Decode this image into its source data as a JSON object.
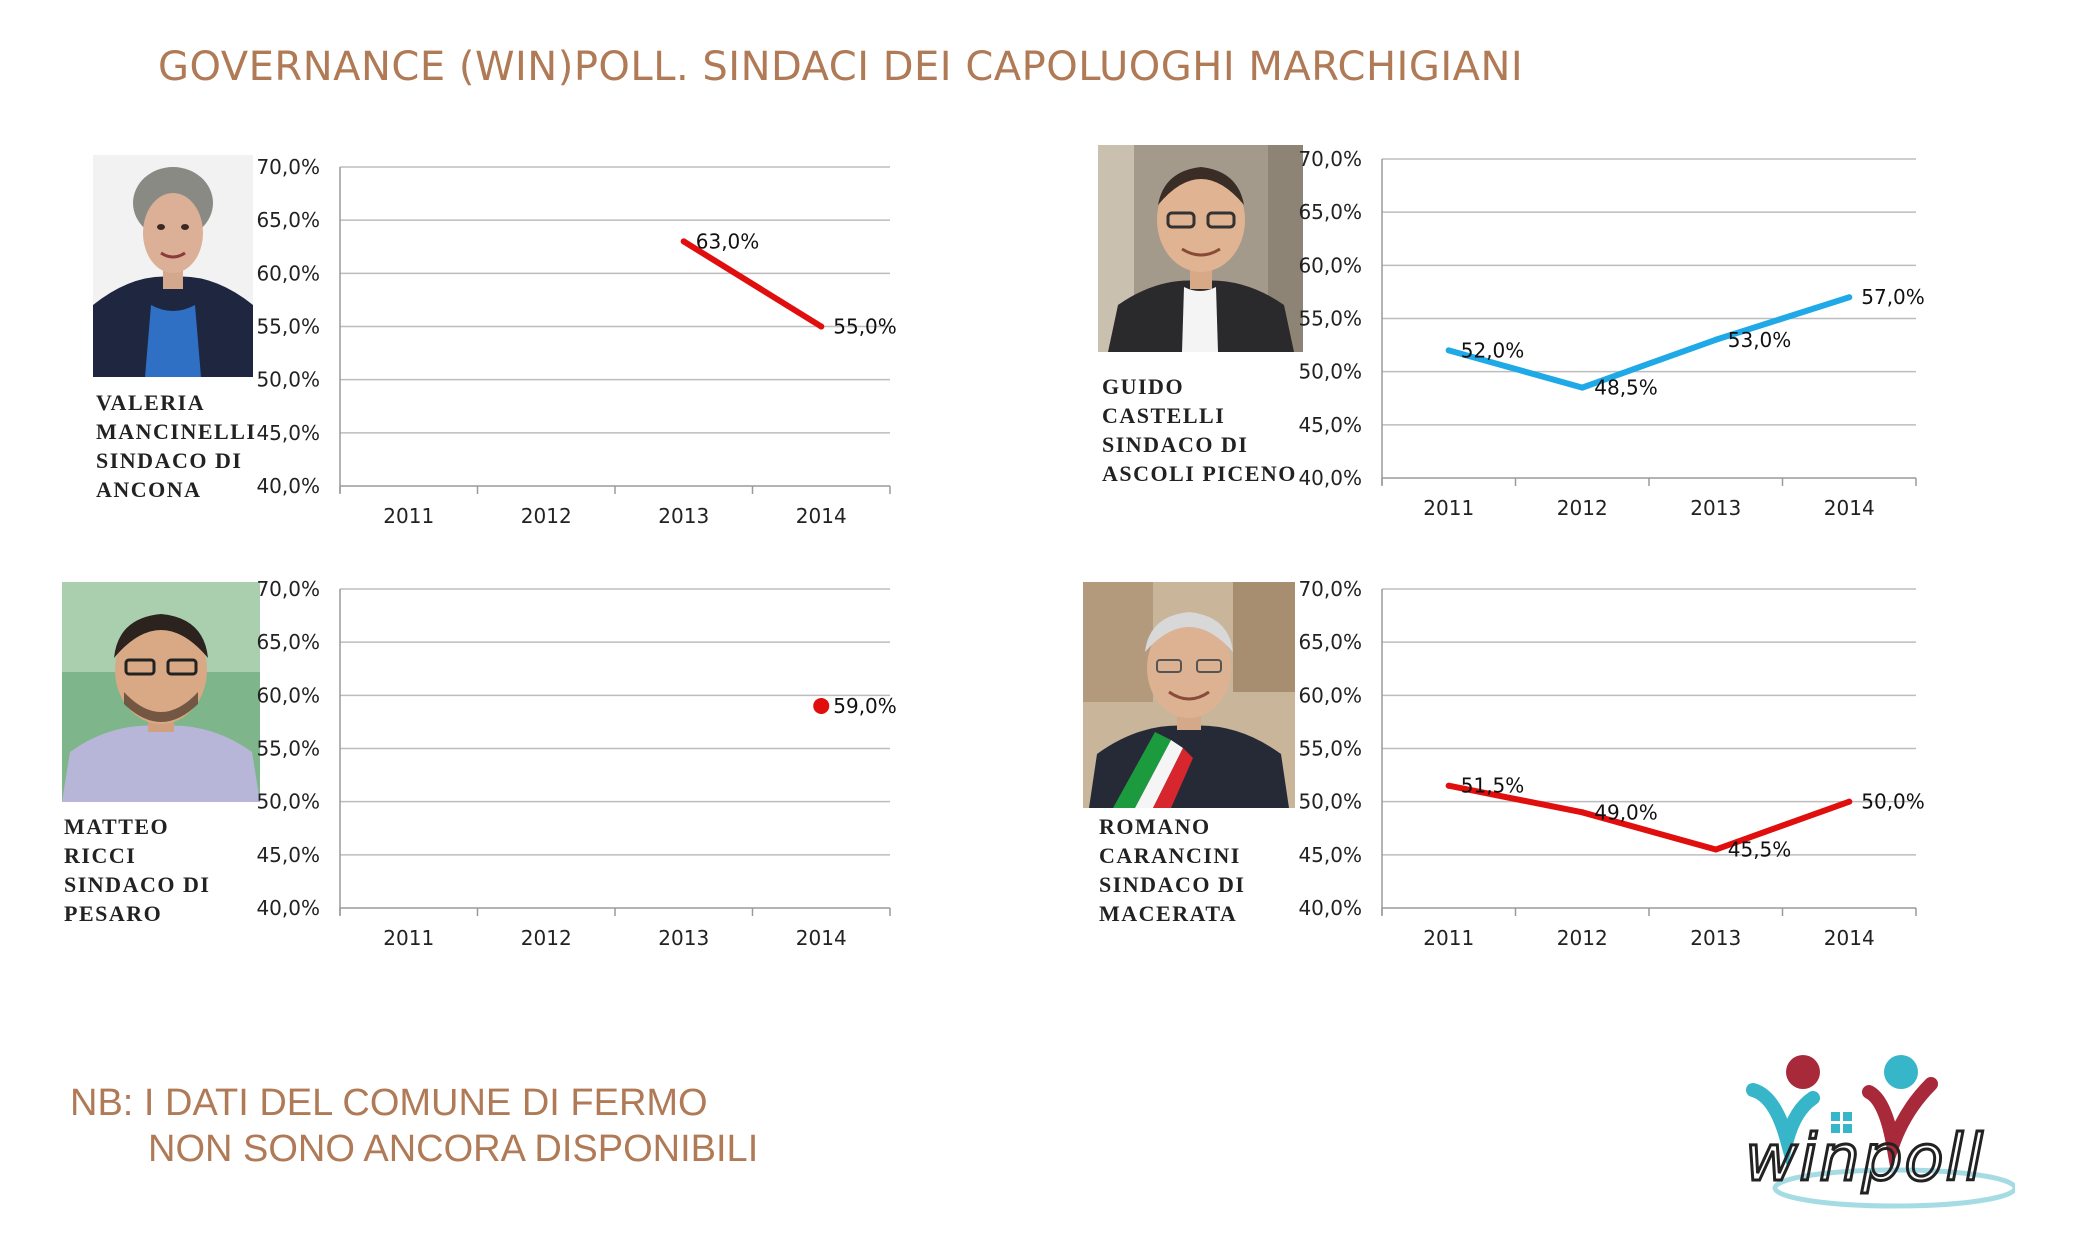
{
  "header": {
    "title": "GOVERNANCE (WIN)POLL. SINDACI DEI CAPOLUOGHI MARCHIGIANI"
  },
  "note": {
    "line1": "NB: I DATI DEL COMUNE DI FERMO",
    "line2": "NON SONO ANCORA DISPONIBILI"
  },
  "logo": {
    "text": "winpoll",
    "colors": {
      "red": "#a8293a",
      "teal": "#36b6c8",
      "dark": "#222222"
    }
  },
  "colors": {
    "red": "#e10e0e",
    "blue": "#1fa9e6",
    "grid": "#bdbdbd",
    "axis": "#9a9a9a",
    "title": "#b07a56"
  },
  "mayors": [
    {
      "name_lines": [
        "VALERIA",
        "MANCINELLI",
        "SINDACO DI",
        "ANCONA"
      ]
    },
    {
      "name_lines": [
        "GUIDO",
        "CASTELLI",
        "SINDACO DI",
        "ASCOLI PICENO"
      ]
    },
    {
      "name_lines": [
        "MATTEO",
        "RICCI",
        "SINDACO DI",
        "PESARO"
      ]
    },
    {
      "name_lines": [
        "ROMANO",
        "CARANCINI",
        "SINDACO DI",
        "MACERATA"
      ]
    }
  ],
  "chart_data": [
    {
      "type": "line",
      "categories": [
        "2011",
        "2012",
        "2013",
        "2014"
      ],
      "series": [
        {
          "values": [
            null,
            null,
            63.0,
            55.0
          ],
          "labels": [
            "",
            "",
            "63,0%",
            "55,0%"
          ],
          "color": "#e10e0e"
        }
      ],
      "ylim": [
        40,
        70
      ],
      "yticks": [
        "40,0%",
        "45,0%",
        "50,0%",
        "55,0%",
        "60,0%",
        "65,0%",
        "70,0%"
      ],
      "grid": true
    },
    {
      "type": "line",
      "categories": [
        "2011",
        "2012",
        "2013",
        "2014"
      ],
      "series": [
        {
          "values": [
            52.0,
            48.5,
            53.0,
            57.0
          ],
          "labels": [
            "52,0%",
            "48,5%",
            "53,0%",
            "57,0%"
          ],
          "color": "#1fa9e6"
        }
      ],
      "ylim": [
        40,
        70
      ],
      "yticks": [
        "40,0%",
        "45,0%",
        "50,0%",
        "55,0%",
        "60,0%",
        "65,0%",
        "70,0%"
      ],
      "grid": true
    },
    {
      "type": "scatter",
      "categories": [
        "2011",
        "2012",
        "2013",
        "2014"
      ],
      "series": [
        {
          "values": [
            null,
            null,
            null,
            59.0
          ],
          "labels": [
            "",
            "",
            "",
            "59,0%"
          ],
          "color": "#e10e0e"
        }
      ],
      "ylim": [
        40,
        70
      ],
      "yticks": [
        "40,0%",
        "45,0%",
        "50,0%",
        "55,0%",
        "60,0%",
        "65,0%",
        "70,0%"
      ],
      "grid": true
    },
    {
      "type": "line",
      "categories": [
        "2011",
        "2012",
        "2013",
        "2014"
      ],
      "series": [
        {
          "values": [
            51.5,
            49.0,
            45.5,
            50.0
          ],
          "labels": [
            "51,5%",
            "49,0%",
            "45,5%",
            "50,0%"
          ],
          "color": "#e10e0e"
        }
      ],
      "ylim": [
        40,
        70
      ],
      "yticks": [
        "40,0%",
        "45,0%",
        "50,0%",
        "55,0%",
        "60,0%",
        "65,0%",
        "70,0%"
      ],
      "grid": true
    }
  ]
}
